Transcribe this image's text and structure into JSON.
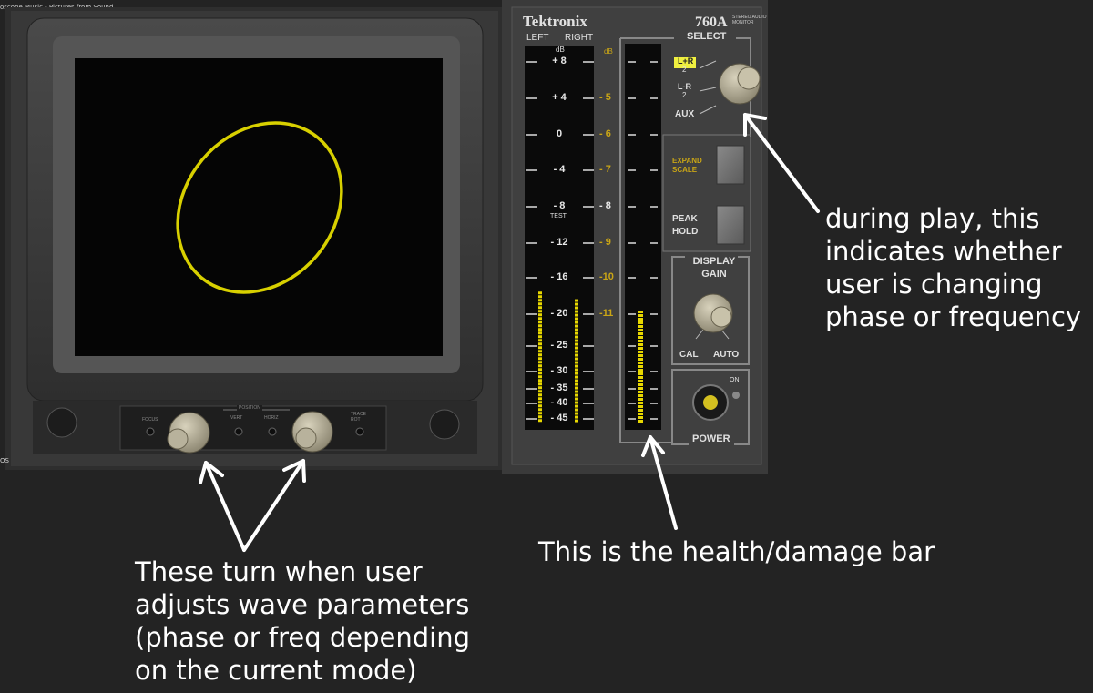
{
  "window": {
    "title": "oscope Music - Pictures from Sound",
    "corner_label": "OS"
  },
  "monitor": {
    "brand": "Tektronix",
    "model": "760A",
    "model_subtitle_line1": "STEREO AUDIO",
    "model_subtitle_line2": "MONITOR",
    "channels": {
      "left": "LEFT",
      "right": "RIGHT"
    },
    "left_scale": {
      "unit": "dB",
      "labels": [
        "+ 8",
        "+ 4",
        "0",
        "- 4",
        "- 8",
        "- 12",
        "- 16",
        "- 20",
        "- 25",
        "- 30",
        "- 35",
        "- 40",
        "- 45"
      ],
      "test_label": "TEST"
    },
    "right_scale": {
      "unit": "dB",
      "labels": [
        "- 5",
        "- 6",
        "- 7",
        "- 8",
        "- 9",
        "-10",
        "-11"
      ]
    },
    "levels": {
      "left": 0.35,
      "right": 0.33,
      "health": 0.3
    },
    "select": {
      "title": "SELECT",
      "lr_sum": "L+R",
      "lr_diff": "L-R",
      "divisor": "2",
      "aux": "AUX",
      "active": "L+R"
    },
    "buttons": {
      "expand_line1": "EXPAND",
      "expand_line2": "SCALE",
      "peak_line1": "PEAK",
      "peak_line2": "HOLD"
    },
    "display_gain": {
      "line1": "DISPLAY",
      "line2": "GAIN",
      "cal": "CAL",
      "auto": "AUTO"
    },
    "power": {
      "label": "POWER",
      "on": "ON"
    },
    "bottom_controls": {
      "focus": "FOCUS",
      "position": "POSITION",
      "vert": "VERT",
      "horiz": "HORIZ",
      "trace_line1": "TRACE",
      "trace_line2": "ROT"
    },
    "colors": {
      "trace": "#d8d000",
      "meter": "#e8d800",
      "accent_label": "#c9a516"
    }
  },
  "annotations": {
    "select_note": [
      "during play, this",
      "indicates whether",
      "user is changing",
      "phase or frequency"
    ],
    "health_note": "This is the health/damage bar",
    "knobs_note": [
      "These turn when user",
      "adjusts wave parameters",
      "(phase or freq depending",
      "on the current mode)"
    ]
  }
}
